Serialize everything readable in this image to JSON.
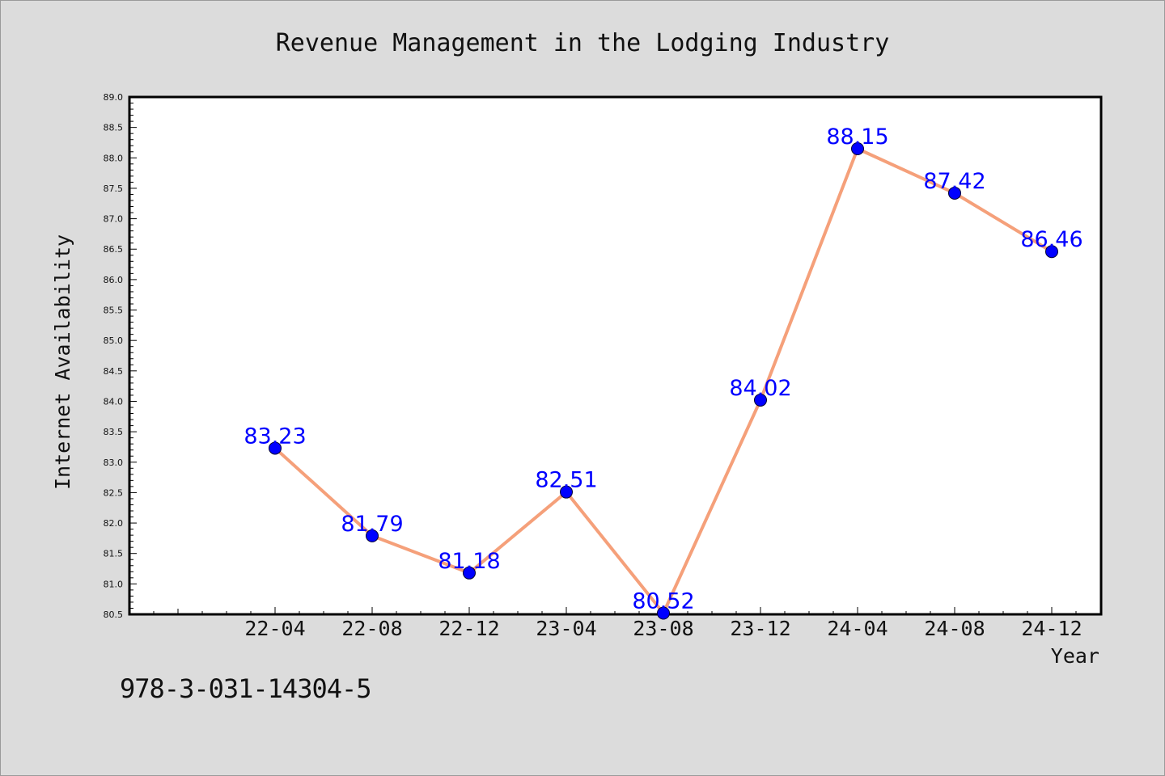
{
  "colors": {
    "background": "#dcdcdc",
    "plot_background": "#ffffff",
    "line": "#f5a07a",
    "marker": "#0000ff",
    "data_label": "#0000ff",
    "text": "#111111"
  },
  "footer": {
    "text": "978-3-031-14304-5"
  },
  "chart_data": {
    "type": "line",
    "title": "Revenue Management in the Lodging Industry",
    "xlabel": "Year",
    "ylabel": "Internet Availability",
    "categories": [
      "22-04",
      "22-08",
      "22-12",
      "23-04",
      "23-08",
      "23-12",
      "24-04",
      "24-08",
      "24-12"
    ],
    "series": [
      {
        "values": [
          83.23,
          81.79,
          81.18,
          82.51,
          80.52,
          84.02,
          88.15,
          87.42,
          86.46
        ],
        "labels": [
          "83.23",
          "81.79",
          "81.18",
          "82.51",
          "80.52",
          "84.02",
          "88.15",
          "87.42",
          "86.46"
        ]
      }
    ],
    "ylim": [
      80.5,
      89.0
    ],
    "yticks": [
      "80.5",
      "81.0",
      "81.5",
      "82.0",
      "82.5",
      "83.0",
      "83.5",
      "84.0",
      "84.5",
      "85.0",
      "85.5",
      "86.0",
      "86.5",
      "87.0",
      "87.5",
      "88.0",
      "88.5",
      "89.0"
    ],
    "grid": false,
    "legend": "none"
  }
}
